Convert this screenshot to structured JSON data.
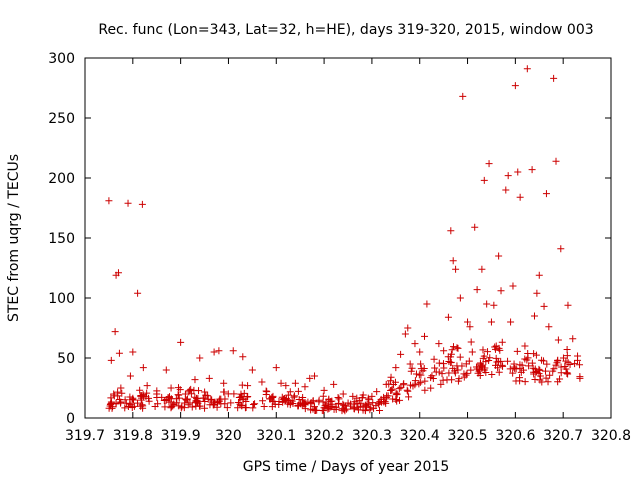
{
  "chart_data": {
    "type": "scatter",
    "title": "Rec. func (Lon=343, Lat=32, h=HE), days 319-320, 2015, window 003",
    "xlabel": "GPS time / Days of year 2015",
    "ylabel": "STEC from uqrg / TECUs",
    "xlim": [
      319.7,
      320.8
    ],
    "ylim": [
      0,
      300
    ],
    "xticks": [
      319.7,
      319.8,
      319.9,
      320.0,
      320.1,
      320.2,
      320.3,
      320.4,
      320.5,
      320.6,
      320.7,
      320.8
    ],
    "xtick_labels": [
      "319.7",
      "319.8",
      "319.9",
      "320",
      "320.1",
      "320.2",
      "320.3",
      "320.4",
      "320.5",
      "320.6",
      "320.7",
      "320.8"
    ],
    "yticks": [
      0,
      50,
      100,
      150,
      200,
      250,
      300
    ],
    "ytick_labels": [
      "0",
      "50",
      "100",
      "150",
      "200",
      "250",
      "300"
    ],
    "marker": "plus",
    "color": "#cc0000",
    "grid": false,
    "series": [
      {
        "name": "STEC",
        "points": [
          [
            319.75,
            181
          ],
          [
            319.755,
            48
          ],
          [
            319.76,
            20
          ],
          [
            319.763,
            72
          ],
          [
            319.765,
            119
          ],
          [
            319.77,
            121
          ],
          [
            319.772,
            54
          ],
          [
            319.775,
            25
          ],
          [
            319.79,
            179
          ],
          [
            319.795,
            35
          ],
          [
            319.8,
            55
          ],
          [
            319.81,
            104
          ],
          [
            319.82,
            178
          ],
          [
            319.822,
            42
          ],
          [
            319.83,
            27
          ],
          [
            319.85,
            20
          ],
          [
            319.87,
            40
          ],
          [
            319.88,
            25
          ],
          [
            319.9,
            63
          ],
          [
            319.91,
            20
          ],
          [
            319.93,
            32
          ],
          [
            319.94,
            50
          ],
          [
            319.96,
            33
          ],
          [
            319.97,
            55
          ],
          [
            319.98,
            56
          ],
          [
            319.99,
            29
          ],
          [
            320.01,
            56
          ],
          [
            320.03,
            51
          ],
          [
            320.04,
            27
          ],
          [
            320.05,
            40
          ],
          [
            320.07,
            30
          ],
          [
            320.08,
            22
          ],
          [
            320.1,
            42
          ],
          [
            320.11,
            29
          ],
          [
            320.12,
            27
          ],
          [
            320.14,
            29
          ],
          [
            320.16,
            26
          ],
          [
            320.17,
            33
          ],
          [
            320.18,
            35
          ],
          [
            320.2,
            23
          ],
          [
            320.22,
            28
          ],
          [
            320.24,
            20
          ],
          [
            320.26,
            18
          ],
          [
            320.28,
            17
          ],
          [
            320.3,
            18
          ],
          [
            320.31,
            22
          ],
          [
            320.33,
            28
          ],
          [
            320.34,
            34
          ],
          [
            320.35,
            42
          ],
          [
            320.36,
            53
          ],
          [
            320.37,
            70
          ],
          [
            320.375,
            75
          ],
          [
            320.38,
            45
          ],
          [
            320.39,
            62
          ],
          [
            320.4,
            55
          ],
          [
            320.41,
            68
          ],
          [
            320.415,
            95
          ],
          [
            320.43,
            49
          ],
          [
            320.44,
            62
          ],
          [
            320.45,
            56
          ],
          [
            320.46,
            84
          ],
          [
            320.465,
            156
          ],
          [
            320.47,
            131
          ],
          [
            320.475,
            124
          ],
          [
            320.48,
            58
          ],
          [
            320.485,
            100
          ],
          [
            320.49,
            268
          ],
          [
            320.5,
            80
          ],
          [
            320.505,
            76
          ],
          [
            320.51,
            55
          ],
          [
            320.515,
            159
          ],
          [
            320.52,
            107
          ],
          [
            320.53,
            124
          ],
          [
            320.535,
            198
          ],
          [
            320.54,
            95
          ],
          [
            320.545,
            212
          ],
          [
            320.55,
            80
          ],
          [
            320.555,
            94
          ],
          [
            320.56,
            60
          ],
          [
            320.565,
            135
          ],
          [
            320.57,
            106
          ],
          [
            320.58,
            190
          ],
          [
            320.585,
            202
          ],
          [
            320.59,
            80
          ],
          [
            320.595,
            110
          ],
          [
            320.6,
            277
          ],
          [
            320.605,
            205
          ],
          [
            320.61,
            184
          ],
          [
            320.62,
            60
          ],
          [
            320.625,
            291
          ],
          [
            320.635,
            207
          ],
          [
            320.64,
            85
          ],
          [
            320.645,
            104
          ],
          [
            320.65,
            119
          ],
          [
            320.66,
            93
          ],
          [
            320.665,
            187
          ],
          [
            320.67,
            76
          ],
          [
            320.68,
            283
          ],
          [
            320.685,
            214
          ],
          [
            320.69,
            65
          ],
          [
            320.695,
            141
          ],
          [
            320.71,
            94
          ],
          [
            320.72,
            66
          ],
          [
            320.73,
            48
          ],
          [
            320.735,
            33
          ]
        ]
      }
    ],
    "bands": [
      {
        "x_from": 319.75,
        "x_to": 320.33,
        "y_low": 8,
        "y_high": 28,
        "count": 300
      },
      {
        "x_from": 320.33,
        "x_to": 320.58,
        "y_low": 12,
        "y_high": 75,
        "count": 120
      },
      {
        "x_from": 320.58,
        "x_to": 320.735,
        "y_low": 30,
        "y_high": 60,
        "count": 70
      }
    ]
  }
}
